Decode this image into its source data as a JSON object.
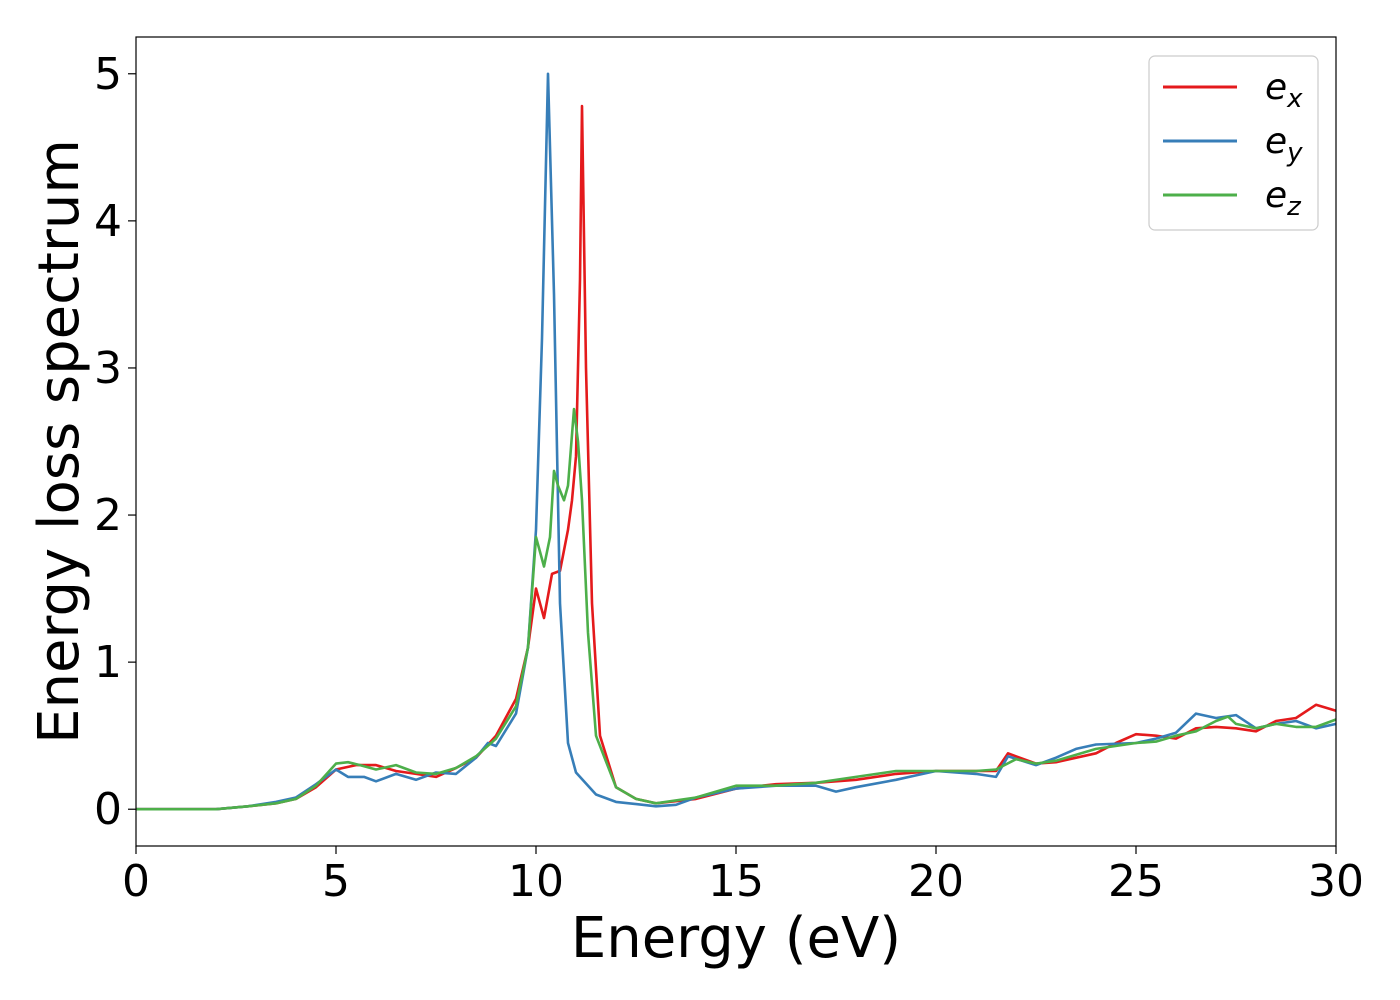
{
  "chart_data": {
    "type": "line",
    "title": "",
    "xlabel": "Energy (eV)",
    "ylabel": "Energy loss spectrum",
    "xlim": [
      0,
      30
    ],
    "ylim": [
      -0.25,
      5.25
    ],
    "xticks": [
      0,
      5,
      10,
      15,
      20,
      25,
      30
    ],
    "yticks": [
      0,
      1,
      2,
      3,
      4,
      5
    ],
    "grid": false,
    "legend_position": "top-right",
    "series": [
      {
        "name": "e",
        "name_subscript": "x",
        "color": "#e41a1c",
        "points": [
          [
            0,
            0
          ],
          [
            2,
            0
          ],
          [
            2.8,
            0.02
          ],
          [
            3.5,
            0.04
          ],
          [
            4,
            0.07
          ],
          [
            4.5,
            0.15
          ],
          [
            5,
            0.27
          ],
          [
            5.5,
            0.3
          ],
          [
            6,
            0.3
          ],
          [
            6.5,
            0.26
          ],
          [
            7,
            0.24
          ],
          [
            7.5,
            0.22
          ],
          [
            8,
            0.28
          ],
          [
            8.5,
            0.35
          ],
          [
            9,
            0.5
          ],
          [
            9.5,
            0.75
          ],
          [
            9.8,
            1.1
          ],
          [
            10,
            1.5
          ],
          [
            10.1,
            1.4
          ],
          [
            10.2,
            1.3
          ],
          [
            10.4,
            1.6
          ],
          [
            10.6,
            1.62
          ],
          [
            10.8,
            1.9
          ],
          [
            10.9,
            2.1
          ],
          [
            11,
            2.4
          ],
          [
            11.1,
            3.6
          ],
          [
            11.15,
            4.78
          ],
          [
            11.25,
            3.0
          ],
          [
            11.4,
            1.4
          ],
          [
            11.6,
            0.5
          ],
          [
            12,
            0.15
          ],
          [
            12.5,
            0.07
          ],
          [
            13,
            0.04
          ],
          [
            14,
            0.07
          ],
          [
            15,
            0.14
          ],
          [
            16,
            0.17
          ],
          [
            17,
            0.18
          ],
          [
            18,
            0.2
          ],
          [
            19,
            0.24
          ],
          [
            20,
            0.26
          ],
          [
            21,
            0.26
          ],
          [
            21.5,
            0.26
          ],
          [
            21.8,
            0.38
          ],
          [
            22,
            0.36
          ],
          [
            22.5,
            0.31
          ],
          [
            23,
            0.32
          ],
          [
            24,
            0.38
          ],
          [
            24.5,
            0.45
          ],
          [
            25,
            0.51
          ],
          [
            25.5,
            0.5
          ],
          [
            26,
            0.48
          ],
          [
            26.5,
            0.55
          ],
          [
            27,
            0.56
          ],
          [
            27.5,
            0.55
          ],
          [
            28,
            0.53
          ],
          [
            28.5,
            0.6
          ],
          [
            29,
            0.62
          ],
          [
            29.5,
            0.71
          ],
          [
            30,
            0.67
          ]
        ]
      },
      {
        "name": "e",
        "name_subscript": "y",
        "color": "#377eb8",
        "points": [
          [
            0,
            0
          ],
          [
            2,
            0
          ],
          [
            2.8,
            0.02
          ],
          [
            3.5,
            0.05
          ],
          [
            4,
            0.08
          ],
          [
            4.5,
            0.17
          ],
          [
            5,
            0.27
          ],
          [
            5.3,
            0.22
          ],
          [
            5.7,
            0.22
          ],
          [
            6,
            0.19
          ],
          [
            6.5,
            0.24
          ],
          [
            7,
            0.2
          ],
          [
            7.5,
            0.25
          ],
          [
            8,
            0.24
          ],
          [
            8.5,
            0.35
          ],
          [
            8.8,
            0.45
          ],
          [
            9,
            0.43
          ],
          [
            9.5,
            0.65
          ],
          [
            9.8,
            1.1
          ],
          [
            10,
            1.9
          ],
          [
            10.15,
            3.2
          ],
          [
            10.3,
            5.0
          ],
          [
            10.45,
            3.5
          ],
          [
            10.6,
            1.4
          ],
          [
            10.8,
            0.45
          ],
          [
            11,
            0.25
          ],
          [
            11.5,
            0.1
          ],
          [
            12,
            0.05
          ],
          [
            13,
            0.02
          ],
          [
            13.5,
            0.03
          ],
          [
            14,
            0.08
          ],
          [
            15,
            0.14
          ],
          [
            16,
            0.16
          ],
          [
            17,
            0.16
          ],
          [
            17.5,
            0.12
          ],
          [
            18,
            0.15
          ],
          [
            19,
            0.2
          ],
          [
            19.5,
            0.23
          ],
          [
            20,
            0.26
          ],
          [
            21,
            0.24
          ],
          [
            21.5,
            0.22
          ],
          [
            21.8,
            0.36
          ],
          [
            22.5,
            0.3
          ],
          [
            23,
            0.35
          ],
          [
            23.5,
            0.41
          ],
          [
            24,
            0.44
          ],
          [
            25,
            0.45
          ],
          [
            25.5,
            0.48
          ],
          [
            26,
            0.52
          ],
          [
            26.5,
            0.65
          ],
          [
            27,
            0.62
          ],
          [
            27.5,
            0.64
          ],
          [
            28,
            0.55
          ],
          [
            28.5,
            0.58
          ],
          [
            29,
            0.6
          ],
          [
            29.5,
            0.55
          ],
          [
            30,
            0.58
          ]
        ]
      },
      {
        "name": "e",
        "name_subscript": "z",
        "color": "#4daf4a",
        "points": [
          [
            0,
            0
          ],
          [
            2,
            0
          ],
          [
            2.8,
            0.02
          ],
          [
            3.5,
            0.04
          ],
          [
            4,
            0.07
          ],
          [
            4.5,
            0.16
          ],
          [
            5,
            0.31
          ],
          [
            5.3,
            0.32
          ],
          [
            5.6,
            0.3
          ],
          [
            6,
            0.27
          ],
          [
            6.5,
            0.3
          ],
          [
            7,
            0.25
          ],
          [
            7.5,
            0.24
          ],
          [
            8,
            0.28
          ],
          [
            8.5,
            0.36
          ],
          [
            9,
            0.48
          ],
          [
            9.5,
            0.7
          ],
          [
            9.8,
            1.1
          ],
          [
            10,
            1.85
          ],
          [
            10.2,
            1.65
          ],
          [
            10.35,
            1.85
          ],
          [
            10.45,
            2.3
          ],
          [
            10.55,
            2.2
          ],
          [
            10.7,
            2.1
          ],
          [
            10.8,
            2.2
          ],
          [
            10.95,
            2.72
          ],
          [
            11.05,
            2.5
          ],
          [
            11.15,
            2.1
          ],
          [
            11.3,
            1.2
          ],
          [
            11.5,
            0.5
          ],
          [
            12,
            0.15
          ],
          [
            12.5,
            0.07
          ],
          [
            13,
            0.04
          ],
          [
            14,
            0.08
          ],
          [
            15,
            0.16
          ],
          [
            16,
            0.16
          ],
          [
            17,
            0.18
          ],
          [
            18,
            0.22
          ],
          [
            19,
            0.26
          ],
          [
            20,
            0.26
          ],
          [
            21,
            0.26
          ],
          [
            21.5,
            0.27
          ],
          [
            22,
            0.34
          ],
          [
            22.5,
            0.31
          ],
          [
            23,
            0.33
          ],
          [
            24,
            0.41
          ],
          [
            25,
            0.45
          ],
          [
            25.5,
            0.46
          ],
          [
            26,
            0.5
          ],
          [
            26.5,
            0.53
          ],
          [
            27,
            0.6
          ],
          [
            27.3,
            0.63
          ],
          [
            27.5,
            0.58
          ],
          [
            28,
            0.55
          ],
          [
            28.5,
            0.58
          ],
          [
            29,
            0.56
          ],
          [
            29.5,
            0.56
          ],
          [
            30,
            0.61
          ]
        ]
      }
    ]
  }
}
